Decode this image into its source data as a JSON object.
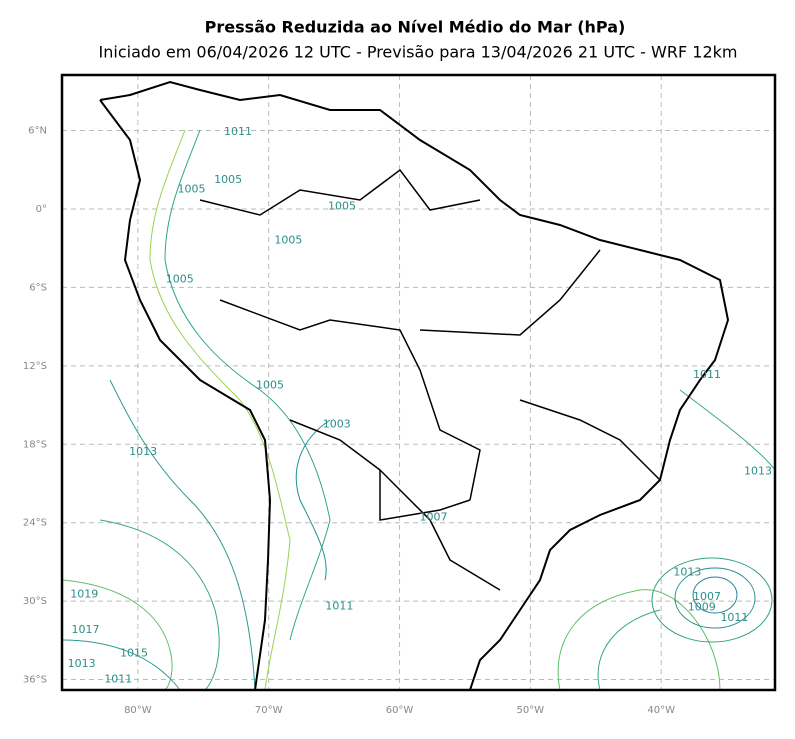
{
  "header": {
    "title": "Pressão Reduzida ao Nível Médio do Mar (hPa)",
    "subtitle": "Iniciado em 06/04/2026 12 UTC - Previsão para 13/04/2026 21 UTC - WRF 12km"
  },
  "map": {
    "lon_range": [
      -85.8,
      -31.3
    ],
    "lat_range": [
      10.25,
      -36.8
    ],
    "grid": true,
    "lon_ticks": [
      {
        "value": -80,
        "label": "80°W"
      },
      {
        "value": -70,
        "label": "70°W"
      },
      {
        "value": -60,
        "label": "60°W"
      },
      {
        "value": -50,
        "label": "50°W"
      },
      {
        "value": -40,
        "label": "40°W"
      }
    ],
    "lat_ticks": [
      {
        "value": 6,
        "label": "6°N"
      },
      {
        "value": 0,
        "label": "0°"
      },
      {
        "value": -6,
        "label": "6°S"
      },
      {
        "value": -12,
        "label": "12°S"
      },
      {
        "value": -18,
        "label": "18°S"
      },
      {
        "value": -24,
        "label": "24°S"
      },
      {
        "value": -30,
        "label": "30°S"
      },
      {
        "value": -36,
        "label": "36°S"
      }
    ],
    "contour_labels": [
      {
        "value": 1011,
        "lon": -72.35,
        "lat": 5.9
      },
      {
        "value": 1005,
        "lon": -73.1,
        "lat": 2.2
      },
      {
        "value": 1005,
        "lon": -75.9,
        "lat": 1.5
      },
      {
        "value": 1005,
        "lon": -64.4,
        "lat": 0.2
      },
      {
        "value": 1005,
        "lon": -68.5,
        "lat": -2.4
      },
      {
        "value": 1005,
        "lon": -76.8,
        "lat": -5.4
      },
      {
        "value": 1005,
        "lon": -69.9,
        "lat": -13.5
      },
      {
        "value": 1003,
        "lon": -64.8,
        "lat": -16.5
      },
      {
        "value": 1013,
        "lon": -79.6,
        "lat": -18.6
      },
      {
        "value": 1007,
        "lon": -57.4,
        "lat": -23.6
      },
      {
        "value": 1011,
        "lon": -36.5,
        "lat": -12.7
      },
      {
        "value": 1013,
        "lon": -32.6,
        "lat": -20.1
      },
      {
        "value": 1013,
        "lon": -38.0,
        "lat": -27.8
      },
      {
        "value": 1007,
        "lon": -36.5,
        "lat": -29.7
      },
      {
        "value": 1009,
        "lon": -36.9,
        "lat": -30.5
      },
      {
        "value": 1011,
        "lon": -34.4,
        "lat": -31.3
      },
      {
        "value": 1011,
        "lon": -64.6,
        "lat": -30.4
      },
      {
        "value": 1019,
        "lon": -84.1,
        "lat": -29.5
      },
      {
        "value": 1017,
        "lon": -84.0,
        "lat": -32.2
      },
      {
        "value": 1015,
        "lon": -80.3,
        "lat": -34.0
      },
      {
        "value": 1013,
        "lon": -84.3,
        "lat": -34.8
      },
      {
        "value": 1011,
        "lon": -81.5,
        "lat": -36.0
      }
    ]
  }
}
